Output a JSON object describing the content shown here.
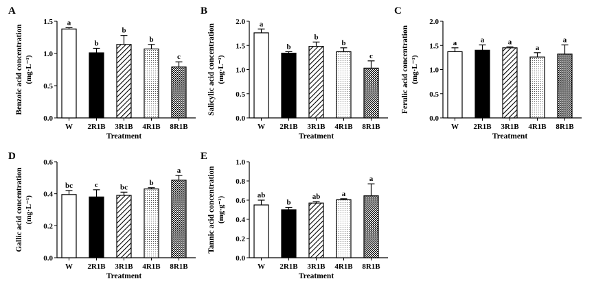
{
  "chart_data": [
    {
      "panel": "A",
      "type": "bar",
      "ylabel": "Benzoic acid concentration",
      "yunit": "(mg·L⁻¹)",
      "xlabel": "Treatment",
      "categories": [
        "W",
        "2R1B",
        "3R1B",
        "4R1B",
        "8R1B"
      ],
      "values": [
        1.38,
        1.01,
        1.14,
        1.07,
        0.79
      ],
      "errors": [
        0.02,
        0.07,
        0.14,
        0.07,
        0.08
      ],
      "letters": [
        "a",
        "b",
        "b",
        "b",
        "c"
      ],
      "ylim": [
        0,
        1.5
      ],
      "yticks": [
        0.0,
        0.5,
        1.0,
        1.5
      ],
      "ytick_labels": [
        "0.0",
        "0.5",
        "1.0",
        "1.5"
      ]
    },
    {
      "panel": "B",
      "type": "bar",
      "ylabel": "Salicylic acid concentration",
      "yunit": "(mg·L⁻¹)",
      "xlabel": "Treatment",
      "categories": [
        "W",
        "2R1B",
        "3R1B",
        "4R1B",
        "8R1B"
      ],
      "values": [
        1.76,
        1.34,
        1.48,
        1.37,
        1.03
      ],
      "errors": [
        0.08,
        0.03,
        0.09,
        0.08,
        0.15
      ],
      "letters": [
        "a",
        "b",
        "b",
        "b",
        "c"
      ],
      "ylim": [
        0,
        2.0
      ],
      "yticks": [
        0.0,
        0.5,
        1.0,
        1.5,
        2.0
      ],
      "ytick_labels": [
        "0.0",
        "0.5",
        "1.0",
        "1.5",
        "2.0"
      ]
    },
    {
      "panel": "C",
      "type": "bar",
      "ylabel": "Ferulic acid concentration",
      "yunit": "(mg·L⁻¹)",
      "xlabel": "Treatment",
      "categories": [
        "W",
        "2R1B",
        "3R1B",
        "4R1B",
        "8R1B"
      ],
      "values": [
        1.37,
        1.4,
        1.45,
        1.26,
        1.32
      ],
      "errors": [
        0.08,
        0.11,
        0.02,
        0.09,
        0.19
      ],
      "letters": [
        "a",
        "a",
        "a",
        "a",
        "a"
      ],
      "ylim": [
        0,
        2.0
      ],
      "yticks": [
        0.0,
        0.5,
        1.0,
        1.5,
        2.0
      ],
      "ytick_labels": [
        "0.0",
        "0.5",
        "1.0",
        "1.5",
        "2.0"
      ]
    },
    {
      "panel": "D",
      "type": "bar",
      "ylabel": "Gallic acid concentration",
      "yunit": "(mg·L⁻¹)",
      "xlabel": "Treatment",
      "categories": [
        "W",
        "2R1B",
        "3R1B",
        "4R1B",
        "8R1B"
      ],
      "values": [
        0.395,
        0.38,
        0.39,
        0.43,
        0.485
      ],
      "errors": [
        0.025,
        0.045,
        0.02,
        0.008,
        0.03
      ],
      "letters": [
        "bc",
        "c",
        "bc",
        "b",
        "a"
      ],
      "ylim": [
        0,
        0.6
      ],
      "yticks": [
        0.0,
        0.2,
        0.4,
        0.6
      ],
      "ytick_labels": [
        "0.0",
        "0.2",
        "0.4",
        "0.6"
      ]
    },
    {
      "panel": "E",
      "type": "bar",
      "ylabel": "Tannic acid concentration",
      "yunit": "(mg·g⁻¹)",
      "xlabel": "Treatment",
      "categories": [
        "W",
        "2R1B",
        "3R1B",
        "4R1B",
        "8R1B"
      ],
      "values": [
        0.55,
        0.5,
        0.57,
        0.605,
        0.645
      ],
      "errors": [
        0.05,
        0.025,
        0.015,
        0.01,
        0.125
      ],
      "letters": [
        "ab",
        "b",
        "ab",
        "a",
        "a"
      ],
      "ylim": [
        0,
        1.0
      ],
      "yticks": [
        0.0,
        0.2,
        0.4,
        0.6,
        0.8,
        1.0
      ],
      "ytick_labels": [
        "0.0",
        "0.2",
        "0.4",
        "0.6",
        "0.8",
        "1.0"
      ]
    }
  ],
  "bar_styles": [
    "open",
    "solid",
    "diagonal",
    "dotted",
    "crosshatch"
  ],
  "colors": {
    "ink": "#000000",
    "background": "#ffffff"
  }
}
